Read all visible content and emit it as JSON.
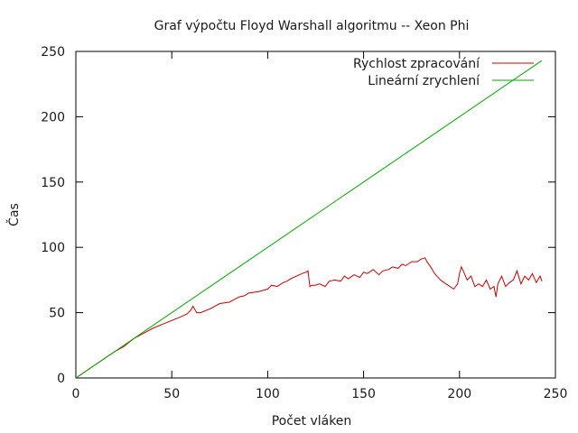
{
  "chart_data": {
    "type": "line",
    "title": "Graf výpočtu Floyd Warshall algoritmu -- Xeon Phi",
    "xlabel": "Počet vláken",
    "ylabel": "Čas",
    "xlim": [
      0,
      250
    ],
    "ylim": [
      0,
      250
    ],
    "xticks": [
      0,
      50,
      100,
      150,
      200,
      250
    ],
    "yticks": [
      0,
      50,
      100,
      150,
      200,
      250
    ],
    "grid": false,
    "legend_position": "top-right",
    "series": [
      {
        "name": "Rychlost zpracování",
        "color": "#cc0000",
        "x": [
          1,
          5,
          10,
          15,
          20,
          25,
          30,
          35,
          40,
          45,
          50,
          55,
          58,
          60,
          61,
          63,
          65,
          70,
          75,
          80,
          85,
          88,
          90,
          95,
          100,
          102,
          105,
          108,
          110,
          112,
          115,
          118,
          120,
          121,
          122,
          123,
          125,
          127,
          130,
          132,
          135,
          138,
          140,
          142,
          145,
          148,
          150,
          152,
          155,
          158,
          160,
          163,
          165,
          168,
          170,
          172,
          175,
          178,
          180,
          182,
          183,
          185,
          187,
          190,
          192,
          195,
          197,
          199,
          200,
          201,
          202,
          204,
          206,
          208,
          210,
          212,
          214,
          216,
          218,
          219,
          220,
          222,
          224,
          226,
          228,
          230,
          232,
          234,
          236,
          238,
          240,
          242,
          243
        ],
        "y": [
          1,
          5,
          10,
          15,
          20,
          24,
          30,
          34,
          38,
          41,
          44,
          47,
          49,
          52,
          55,
          50,
          50,
          53,
          57,
          58,
          62,
          63,
          65,
          66,
          68,
          71,
          70,
          73,
          74,
          76,
          78,
          80,
          81,
          82,
          70,
          71,
          71,
          72,
          70,
          74,
          75,
          74,
          78,
          76,
          79,
          77,
          81,
          80,
          83,
          79,
          82,
          83,
          85,
          84,
          87,
          86,
          89,
          89,
          91,
          92,
          89,
          85,
          80,
          75,
          73,
          70,
          68,
          72,
          80,
          85,
          82,
          75,
          78,
          70,
          72,
          70,
          75,
          68,
          70,
          62,
          72,
          78,
          70,
          73,
          75,
          82,
          72,
          78,
          75,
          80,
          73,
          78,
          74
        ]
      },
      {
        "name": "Lineární zrychlení",
        "color": "#00aa00",
        "x": [
          0,
          243
        ],
        "y": [
          0,
          243
        ]
      }
    ]
  }
}
